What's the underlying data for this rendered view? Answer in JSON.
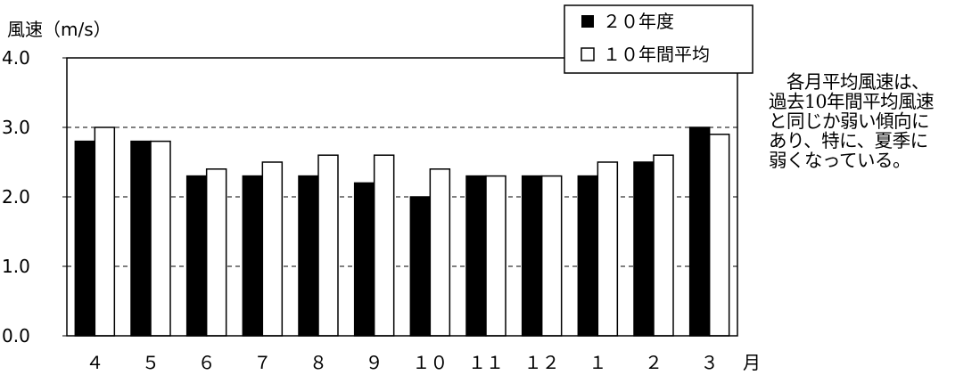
{
  "chart_data": {
    "type": "bar",
    "ylabel": "風速（m/s）",
    "xunit": "月",
    "categories": [
      "４",
      "５",
      "６",
      "７",
      "８",
      "９",
      "１０",
      "１１",
      "１２",
      "１",
      "２",
      "３"
    ],
    "yticks": [
      "0.0",
      "1.0",
      "2.0",
      "3.0",
      "4.0"
    ],
    "ylim": [
      0,
      4
    ],
    "grid": true,
    "legend_position": "top-right",
    "series": [
      {
        "name": "２０年度",
        "marker": "■",
        "fill": "#000000",
        "values": [
          2.8,
          2.8,
          2.3,
          2.3,
          2.3,
          2.2,
          2.0,
          2.3,
          2.3,
          2.3,
          2.5,
          3.0
        ]
      },
      {
        "name": "１０年間平均",
        "marker": "□",
        "fill": "#ffffff",
        "values": [
          3.0,
          2.8,
          2.4,
          2.5,
          2.6,
          2.6,
          2.4,
          2.3,
          2.3,
          2.5,
          2.6,
          2.9
        ]
      }
    ]
  },
  "note": "　各月平均風速は、\n過去10年間平均風速\nと同じか弱い傾向に\nあり、特に、夏季に\n弱くなっている。"
}
